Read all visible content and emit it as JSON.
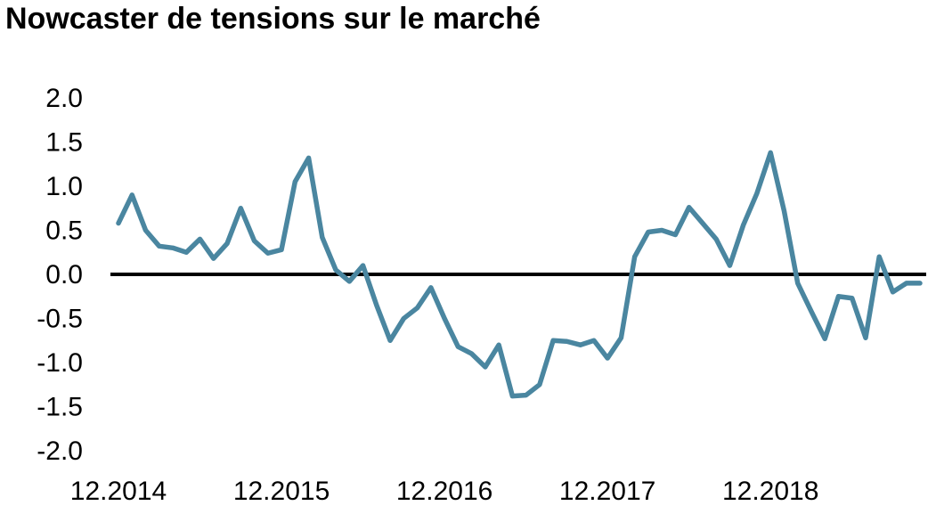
{
  "chart_data": {
    "type": "line",
    "title": "Nowcaster de tensions sur le marché",
    "xlabel": "",
    "ylabel": "",
    "ylim": [
      -2.0,
      2.0
    ],
    "y_ticks": [
      "2.0",
      "1.5",
      "1.0",
      "0.5",
      "0.0",
      "-0.5",
      "-1.0",
      "-1.5",
      "-2.0"
    ],
    "x_ticks": [
      "12.2014",
      "12.2015",
      "12.2016",
      "12.2017",
      "12.2018"
    ],
    "grid": false,
    "legend": "none",
    "zero_line": true,
    "colors": {
      "series": "#4a86a0",
      "zero_line": "#000000"
    },
    "series": [
      {
        "x": [
          "12.2014",
          "01.2015",
          "02.2015",
          "03.2015",
          "04.2015",
          "05.2015",
          "06.2015",
          "07.2015",
          "08.2015",
          "09.2015",
          "10.2015",
          "11.2015",
          "12.2015",
          "01.2016",
          "02.2016",
          "03.2016",
          "04.2016",
          "05.2016",
          "06.2016",
          "07.2016",
          "08.2016",
          "09.2016",
          "10.2016",
          "11.2016",
          "12.2016",
          "01.2017",
          "02.2017",
          "03.2017",
          "04.2017",
          "05.2017",
          "06.2017",
          "07.2017",
          "08.2017",
          "09.2017",
          "10.2017",
          "11.2017",
          "12.2017",
          "01.2018",
          "02.2018",
          "03.2018",
          "04.2018",
          "05.2018",
          "06.2018",
          "07.2018",
          "08.2018",
          "09.2018",
          "10.2018",
          "11.2018",
          "12.2018",
          "01.2019",
          "02.2019",
          "03.2019",
          "04.2019",
          "05.2019",
          "06.2019",
          "07.2019",
          "08.2019",
          "09.2019",
          "10.2019",
          "11.2019"
        ],
        "values": [
          0.58,
          0.9,
          0.5,
          0.32,
          0.3,
          0.25,
          0.4,
          0.18,
          0.35,
          0.75,
          0.38,
          0.24,
          0.28,
          1.05,
          1.32,
          0.42,
          0.05,
          -0.08,
          0.1,
          -0.35,
          -0.75,
          -0.5,
          -0.38,
          -0.15,
          -0.5,
          -0.82,
          -0.9,
          -1.05,
          -0.8,
          -1.38,
          -1.37,
          -1.25,
          -0.75,
          -0.76,
          -0.8,
          -0.75,
          -0.95,
          -0.72,
          0.2,
          0.48,
          0.5,
          0.45,
          0.76,
          0.58,
          0.4,
          0.1,
          0.56,
          0.92,
          1.38,
          0.72,
          -0.1,
          -0.42,
          -0.73,
          -0.25,
          -0.27,
          -0.72,
          0.2,
          -0.2,
          -0.1,
          -0.1
        ]
      }
    ]
  }
}
